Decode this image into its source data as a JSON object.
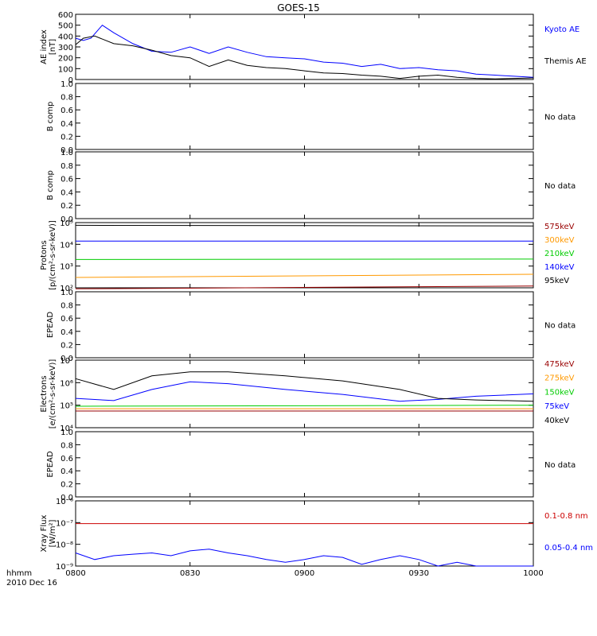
{
  "title": "GOES-15",
  "x_axis": {
    "ticks": [
      "0800",
      "0830",
      "0900",
      "0930",
      "1000"
    ],
    "corner_label": "hhmm",
    "date_label": "2010 Dec 16"
  },
  "colors": {
    "black": "#000000",
    "blue": "#0000ff",
    "red": "#cc0000",
    "orange": "#ff9900",
    "green": "#00cc00",
    "dark_red": "#990000",
    "axis": "#000000"
  },
  "chart_data": [
    {
      "id": "ae",
      "type": "line",
      "ylabel": [
        "AE index",
        "[nT]"
      ],
      "y_ticks": [
        "600",
        "500",
        "400",
        "300",
        "200",
        "100",
        "0"
      ],
      "ylim": [
        0,
        600
      ],
      "x_range": [
        "0800",
        "1000"
      ],
      "series": [
        {
          "name": "Kyoto AE",
          "color": "blue",
          "x": [
            0,
            2,
            4,
            7,
            10,
            15,
            20,
            25,
            30,
            35,
            40,
            45,
            50,
            55,
            60,
            65,
            70,
            75,
            80,
            85,
            90,
            95,
            100,
            105,
            110,
            115,
            120
          ],
          "y": [
            380,
            360,
            380,
            500,
            430,
            330,
            260,
            250,
            300,
            240,
            300,
            250,
            210,
            200,
            190,
            160,
            150,
            120,
            140,
            100,
            110,
            90,
            80,
            50,
            40,
            30,
            20
          ]
        },
        {
          "name": "Themis AE",
          "color": "black",
          "x": [
            0,
            2,
            5,
            10,
            15,
            20,
            25,
            30,
            35,
            40,
            45,
            50,
            55,
            60,
            65,
            70,
            75,
            80,
            85,
            90,
            95,
            100,
            105,
            110,
            115,
            120
          ],
          "y": [
            320,
            380,
            400,
            330,
            310,
            270,
            220,
            200,
            120,
            180,
            130,
            110,
            100,
            80,
            60,
            55,
            40,
            30,
            10,
            30,
            40,
            20,
            10,
            5,
            10,
            15
          ]
        }
      ]
    },
    {
      "id": "b1",
      "type": "line",
      "ylabel": [
        "B comp"
      ],
      "y_ticks": [
        "1.0",
        "0.8",
        "0.6",
        "0.4",
        "0.2",
        "0.0"
      ],
      "ylim": [
        0,
        1
      ],
      "note": "No data",
      "series": []
    },
    {
      "id": "b2",
      "type": "line",
      "ylabel": [
        "B comp"
      ],
      "y_ticks": [
        "1.0",
        "0.8",
        "0.6",
        "0.4",
        "0.2",
        "0.0"
      ],
      "ylim": [
        0,
        1
      ],
      "note": "No data",
      "series": []
    },
    {
      "id": "protons",
      "type": "line",
      "log": true,
      "ylabel": [
        "Protons",
        "[p/(cm²-s-sr-keV)]"
      ],
      "y_ticks": [
        "10⁵",
        "10⁴",
        "10³",
        "10²"
      ],
      "ylim": [
        100,
        100000
      ],
      "series": [
        {
          "name": "575keV",
          "color": "dark_red",
          "x": [
            0,
            120
          ],
          "y": [
            90,
            120
          ]
        },
        {
          "name": "300keV",
          "color": "orange",
          "x": [
            0,
            120
          ],
          "y": [
            300,
            420
          ]
        },
        {
          "name": "210keV",
          "color": "green",
          "x": [
            0,
            120
          ],
          "y": [
            2000,
            2100
          ]
        },
        {
          "name": "140keV",
          "color": "blue",
          "x": [
            0,
            120
          ],
          "y": [
            14000,
            14000
          ]
        },
        {
          "name": "95keV",
          "color": "black",
          "x": [
            0,
            120
          ],
          "y": [
            75000,
            70000
          ]
        }
      ]
    },
    {
      "id": "epead1",
      "type": "line",
      "ylabel": [
        "EPEAD"
      ],
      "y_ticks": [
        "1.0",
        "0.8",
        "0.6",
        "0.4",
        "0.2",
        "0.0"
      ],
      "ylim": [
        0,
        1
      ],
      "note": "No data",
      "series": []
    },
    {
      "id": "electrons",
      "type": "line",
      "log": true,
      "ylabel": [
        "Electrons",
        "[e/(cm²-s-sr-keV)]"
      ],
      "y_ticks": [
        "10⁷",
        "10⁶",
        "10⁵",
        "10⁴"
      ],
      "ylim": [
        10000,
        10000000
      ],
      "series": [
        {
          "name": "475keV",
          "color": "dark_red",
          "x": [
            0,
            120
          ],
          "y": [
            55000,
            55000
          ]
        },
        {
          "name": "275keV",
          "color": "orange",
          "x": [
            0,
            120
          ],
          "y": [
            70000,
            70000
          ]
        },
        {
          "name": "150keV",
          "color": "green",
          "x": [
            0,
            120
          ],
          "y": [
            90000,
            100000
          ]
        },
        {
          "name": "75keV",
          "color": "blue",
          "x": [
            0,
            10,
            20,
            30,
            40,
            55,
            70,
            85,
            95,
            105,
            120
          ],
          "y": [
            200000,
            160000,
            500000,
            1100000,
            900000,
            500000,
            300000,
            150000,
            180000,
            250000,
            320000
          ]
        },
        {
          "name": "40keV",
          "color": "black",
          "x": [
            0,
            10,
            20,
            30,
            40,
            55,
            70,
            85,
            95,
            105,
            120
          ],
          "y": [
            1500000,
            500000,
            2000000,
            3000000,
            3000000,
            2000000,
            1200000,
            500000,
            200000,
            170000,
            150000
          ]
        }
      ]
    },
    {
      "id": "epead2",
      "type": "line",
      "ylabel": [
        "EPEAD"
      ],
      "y_ticks": [
        "1.0",
        "0.8",
        "0.6",
        "0.4",
        "0.2",
        "0.0"
      ],
      "ylim": [
        0,
        1
      ],
      "note": "No data",
      "series": []
    },
    {
      "id": "xray",
      "type": "line",
      "log": true,
      "ylabel": [
        "Xray Flux",
        "[W/m²]"
      ],
      "y_ticks": [
        "10⁻⁶",
        "10⁻⁷",
        "10⁻⁸",
        "10⁻⁹"
      ],
      "ylim": [
        1e-09,
        1e-06
      ],
      "series": [
        {
          "name": "0.1-0.8 nm",
          "color": "red",
          "x": [
            0,
            120
          ],
          "y": [
            9e-08,
            9e-08
          ]
        },
        {
          "name": "0.05-0.4 nm",
          "color": "blue",
          "x": [
            0,
            5,
            10,
            15,
            20,
            25,
            30,
            35,
            40,
            45,
            50,
            55,
            60,
            65,
            70,
            75,
            80,
            85,
            90,
            95,
            100,
            105,
            110,
            115,
            120
          ],
          "y": [
            4e-09,
            2e-09,
            3e-09,
            3.5e-09,
            4e-09,
            3e-09,
            5e-09,
            6e-09,
            4e-09,
            3e-09,
            2e-09,
            1.5e-09,
            2e-09,
            3e-09,
            2.5e-09,
            1.2e-09,
            2e-09,
            3e-09,
            2e-09,
            1e-09,
            1.5e-09,
            1e-09,
            1e-09,
            1e-09,
            1e-09
          ]
        }
      ]
    }
  ]
}
